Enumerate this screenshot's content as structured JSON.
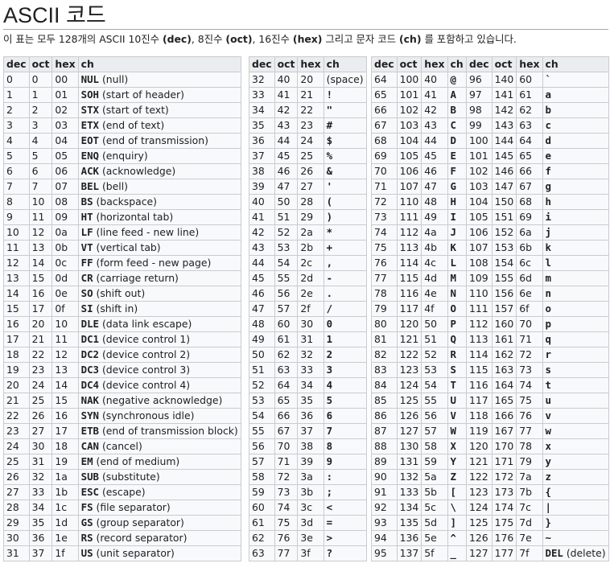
{
  "page": {
    "title": "ASCII 코드",
    "intro": {
      "t1": "이 표는 모두 128개의 ASCII 10진수 ",
      "b1": "(dec)",
      "t2": ", 8진수 ",
      "b2": "(oct)",
      "t3": ", 16진수 ",
      "b3": "(hex)",
      "t4": " 그리고 문자 코드 ",
      "b4": "(ch)",
      "t5": " 를 포함하고 있습니다."
    }
  },
  "headers": [
    "dec",
    "oct",
    "hex",
    "ch"
  ],
  "tables": [
    [
      [
        "0",
        "0",
        "00",
        "NUL",
        "(null)"
      ],
      [
        "1",
        "1",
        "01",
        "SOH",
        "(start of header)"
      ],
      [
        "2",
        "2",
        "02",
        "STX",
        "(start of text)"
      ],
      [
        "3",
        "3",
        "03",
        "ETX",
        "(end of text)"
      ],
      [
        "4",
        "4",
        "04",
        "EOT",
        "(end of transmission)"
      ],
      [
        "5",
        "5",
        "05",
        "ENQ",
        "(enquiry)"
      ],
      [
        "6",
        "6",
        "06",
        "ACK",
        "(acknowledge)"
      ],
      [
        "7",
        "7",
        "07",
        "BEL",
        "(bell)"
      ],
      [
        "8",
        "10",
        "08",
        "BS",
        "(backspace)"
      ],
      [
        "9",
        "11",
        "09",
        "HT",
        "(horizontal tab)"
      ],
      [
        "10",
        "12",
        "0a",
        "LF",
        "(line feed - new line)"
      ],
      [
        "11",
        "13",
        "0b",
        "VT",
        "(vertical tab)"
      ],
      [
        "12",
        "14",
        "0c",
        "FF",
        "(form feed - new page)"
      ],
      [
        "13",
        "15",
        "0d",
        "CR",
        "(carriage return)"
      ],
      [
        "14",
        "16",
        "0e",
        "SO",
        "(shift out)"
      ],
      [
        "15",
        "17",
        "0f",
        "SI",
        "(shift in)"
      ],
      [
        "16",
        "20",
        "10",
        "DLE",
        "(data link escape)"
      ],
      [
        "17",
        "21",
        "11",
        "DC1",
        "(device control 1)"
      ],
      [
        "18",
        "22",
        "12",
        "DC2",
        "(device control 2)"
      ],
      [
        "19",
        "23",
        "13",
        "DC3",
        "(device control 3)"
      ],
      [
        "20",
        "24",
        "14",
        "DC4",
        "(device control 4)"
      ],
      [
        "21",
        "25",
        "15",
        "NAK",
        "(negative acknowledge)"
      ],
      [
        "22",
        "26",
        "16",
        "SYN",
        "(synchronous idle)"
      ],
      [
        "23",
        "27",
        "17",
        "ETB",
        "(end of transmission block)"
      ],
      [
        "24",
        "30",
        "18",
        "CAN",
        "(cancel)"
      ],
      [
        "25",
        "31",
        "19",
        "EM",
        "(end of medium)"
      ],
      [
        "26",
        "32",
        "1a",
        "SUB",
        "(substitute)"
      ],
      [
        "27",
        "33",
        "1b",
        "ESC",
        "(escape)"
      ],
      [
        "28",
        "34",
        "1c",
        "FS",
        "(file separator)"
      ],
      [
        "29",
        "35",
        "1d",
        "GS",
        "(group separator)"
      ],
      [
        "30",
        "36",
        "1e",
        "RS",
        "(record separator)"
      ],
      [
        "31",
        "37",
        "1f",
        "US",
        "(unit separator)"
      ]
    ],
    [
      [
        "32",
        "40",
        "20",
        "",
        "(space)"
      ],
      [
        "33",
        "41",
        "21",
        "!",
        ""
      ],
      [
        "34",
        "42",
        "22",
        "\"",
        ""
      ],
      [
        "35",
        "43",
        "23",
        "#",
        ""
      ],
      [
        "36",
        "44",
        "24",
        "$",
        ""
      ],
      [
        "37",
        "45",
        "25",
        "%",
        ""
      ],
      [
        "38",
        "46",
        "26",
        "&",
        ""
      ],
      [
        "39",
        "47",
        "27",
        "'",
        ""
      ],
      [
        "40",
        "50",
        "28",
        "(",
        ""
      ],
      [
        "41",
        "51",
        "29",
        ")",
        ""
      ],
      [
        "42",
        "52",
        "2a",
        "*",
        ""
      ],
      [
        "43",
        "53",
        "2b",
        "+",
        ""
      ],
      [
        "44",
        "54",
        "2c",
        ",",
        ""
      ],
      [
        "45",
        "55",
        "2d",
        "-",
        ""
      ],
      [
        "46",
        "56",
        "2e",
        ".",
        ""
      ],
      [
        "47",
        "57",
        "2f",
        "/",
        ""
      ],
      [
        "48",
        "60",
        "30",
        "0",
        ""
      ],
      [
        "49",
        "61",
        "31",
        "1",
        ""
      ],
      [
        "50",
        "62",
        "32",
        "2",
        ""
      ],
      [
        "51",
        "63",
        "33",
        "3",
        ""
      ],
      [
        "52",
        "64",
        "34",
        "4",
        ""
      ],
      [
        "53",
        "65",
        "35",
        "5",
        ""
      ],
      [
        "54",
        "66",
        "36",
        "6",
        ""
      ],
      [
        "55",
        "67",
        "37",
        "7",
        ""
      ],
      [
        "56",
        "70",
        "38",
        "8",
        ""
      ],
      [
        "57",
        "71",
        "39",
        "9",
        ""
      ],
      [
        "58",
        "72",
        "3a",
        ":",
        ""
      ],
      [
        "59",
        "73",
        "3b",
        ";",
        ""
      ],
      [
        "60",
        "74",
        "3c",
        "<",
        ""
      ],
      [
        "61",
        "75",
        "3d",
        "=",
        ""
      ],
      [
        "62",
        "76",
        "3e",
        ">",
        ""
      ],
      [
        "63",
        "77",
        "3f",
        "?",
        ""
      ]
    ],
    [
      [
        "64",
        "100",
        "40",
        "@",
        ""
      ],
      [
        "65",
        "101",
        "41",
        "A",
        ""
      ],
      [
        "66",
        "102",
        "42",
        "B",
        ""
      ],
      [
        "67",
        "103",
        "43",
        "C",
        ""
      ],
      [
        "68",
        "104",
        "44",
        "D",
        ""
      ],
      [
        "69",
        "105",
        "45",
        "E",
        ""
      ],
      [
        "70",
        "106",
        "46",
        "F",
        ""
      ],
      [
        "71",
        "107",
        "47",
        "G",
        ""
      ],
      [
        "72",
        "110",
        "48",
        "H",
        ""
      ],
      [
        "73",
        "111",
        "49",
        "I",
        ""
      ],
      [
        "74",
        "112",
        "4a",
        "J",
        ""
      ],
      [
        "75",
        "113",
        "4b",
        "K",
        ""
      ],
      [
        "76",
        "114",
        "4c",
        "L",
        ""
      ],
      [
        "77",
        "115",
        "4d",
        "M",
        ""
      ],
      [
        "78",
        "116",
        "4e",
        "N",
        ""
      ],
      [
        "79",
        "117",
        "4f",
        "O",
        ""
      ],
      [
        "80",
        "120",
        "50",
        "P",
        ""
      ],
      [
        "81",
        "121",
        "51",
        "Q",
        ""
      ],
      [
        "82",
        "122",
        "52",
        "R",
        ""
      ],
      [
        "83",
        "123",
        "53",
        "S",
        ""
      ],
      [
        "84",
        "124",
        "54",
        "T",
        ""
      ],
      [
        "85",
        "125",
        "55",
        "U",
        ""
      ],
      [
        "86",
        "126",
        "56",
        "V",
        ""
      ],
      [
        "87",
        "127",
        "57",
        "W",
        ""
      ],
      [
        "88",
        "130",
        "58",
        "X",
        ""
      ],
      [
        "89",
        "131",
        "59",
        "Y",
        ""
      ],
      [
        "90",
        "132",
        "5a",
        "Z",
        ""
      ],
      [
        "91",
        "133",
        "5b",
        "[",
        ""
      ],
      [
        "92",
        "134",
        "5c",
        "\\",
        ""
      ],
      [
        "93",
        "135",
        "5d",
        "]",
        ""
      ],
      [
        "94",
        "136",
        "5e",
        "^",
        ""
      ],
      [
        "95",
        "137",
        "5f",
        "_",
        ""
      ]
    ],
    [
      [
        "96",
        "140",
        "60",
        "`",
        ""
      ],
      [
        "97",
        "141",
        "61",
        "a",
        ""
      ],
      [
        "98",
        "142",
        "62",
        "b",
        ""
      ],
      [
        "99",
        "143",
        "63",
        "c",
        ""
      ],
      [
        "100",
        "144",
        "64",
        "d",
        ""
      ],
      [
        "101",
        "145",
        "65",
        "e",
        ""
      ],
      [
        "102",
        "146",
        "66",
        "f",
        ""
      ],
      [
        "103",
        "147",
        "67",
        "g",
        ""
      ],
      [
        "104",
        "150",
        "68",
        "h",
        ""
      ],
      [
        "105",
        "151",
        "69",
        "i",
        ""
      ],
      [
        "106",
        "152",
        "6a",
        "j",
        ""
      ],
      [
        "107",
        "153",
        "6b",
        "k",
        ""
      ],
      [
        "108",
        "154",
        "6c",
        "l",
        ""
      ],
      [
        "109",
        "155",
        "6d",
        "m",
        ""
      ],
      [
        "110",
        "156",
        "6e",
        "n",
        ""
      ],
      [
        "111",
        "157",
        "6f",
        "o",
        ""
      ],
      [
        "112",
        "160",
        "70",
        "p",
        ""
      ],
      [
        "113",
        "161",
        "71",
        "q",
        ""
      ],
      [
        "114",
        "162",
        "72",
        "r",
        ""
      ],
      [
        "115",
        "163",
        "73",
        "s",
        ""
      ],
      [
        "116",
        "164",
        "74",
        "t",
        ""
      ],
      [
        "117",
        "165",
        "75",
        "u",
        ""
      ],
      [
        "118",
        "166",
        "76",
        "v",
        ""
      ],
      [
        "119",
        "167",
        "77",
        "w",
        ""
      ],
      [
        "120",
        "170",
        "78",
        "x",
        ""
      ],
      [
        "121",
        "171",
        "79",
        "y",
        ""
      ],
      [
        "122",
        "172",
        "7a",
        "z",
        ""
      ],
      [
        "123",
        "173",
        "7b",
        "{",
        ""
      ],
      [
        "124",
        "174",
        "7c",
        "|",
        ""
      ],
      [
        "125",
        "175",
        "7d",
        "}",
        ""
      ],
      [
        "126",
        "176",
        "7e",
        "~",
        ""
      ],
      [
        "127",
        "177",
        "7f",
        "DEL",
        "(delete)"
      ]
    ]
  ]
}
